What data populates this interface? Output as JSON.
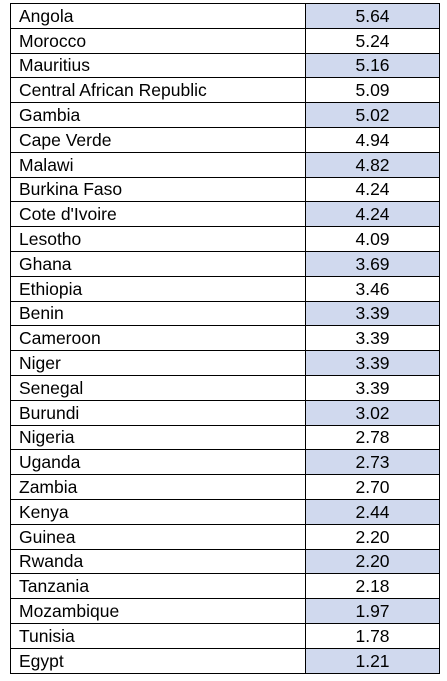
{
  "table": {
    "rows": [
      {
        "country": "Angola",
        "value": "5.64",
        "shaded": true
      },
      {
        "country": "Morocco",
        "value": "5.24",
        "shaded": false
      },
      {
        "country": "Mauritius",
        "value": "5.16",
        "shaded": true
      },
      {
        "country": "Central African Republic",
        "value": "5.09",
        "shaded": false
      },
      {
        "country": "Gambia",
        "value": "5.02",
        "shaded": true
      },
      {
        "country": "Cape Verde",
        "value": "4.94",
        "shaded": false
      },
      {
        "country": "Malawi",
        "value": "4.82",
        "shaded": true
      },
      {
        "country": "Burkina Faso",
        "value": "4.24",
        "shaded": false
      },
      {
        "country": "Cote d'Ivoire",
        "value": "4.24",
        "shaded": true
      },
      {
        "country": "Lesotho",
        "value": "4.09",
        "shaded": false
      },
      {
        "country": "Ghana",
        "value": "3.69",
        "shaded": true
      },
      {
        "country": "Ethiopia",
        "value": "3.46",
        "shaded": false
      },
      {
        "country": "Benin",
        "value": "3.39",
        "shaded": true
      },
      {
        "country": "Cameroon",
        "value": "3.39",
        "shaded": false
      },
      {
        "country": "Niger",
        "value": "3.39",
        "shaded": true
      },
      {
        "country": "Senegal",
        "value": "3.39",
        "shaded": false
      },
      {
        "country": "Burundi",
        "value": "3.02",
        "shaded": true
      },
      {
        "country": "Nigeria",
        "value": "2.78",
        "shaded": false
      },
      {
        "country": "Uganda",
        "value": "2.73",
        "shaded": true
      },
      {
        "country": "Zambia",
        "value": "2.70",
        "shaded": false
      },
      {
        "country": "Kenya",
        "value": "2.44",
        "shaded": true
      },
      {
        "country": "Guinea",
        "value": "2.20",
        "shaded": false
      },
      {
        "country": "Rwanda",
        "value": "2.20",
        "shaded": true
      },
      {
        "country": "Tanzania",
        "value": "2.18",
        "shaded": false
      },
      {
        "country": "Mozambique",
        "value": "1.97",
        "shaded": true
      },
      {
        "country": "Tunisia",
        "value": "1.78",
        "shaded": false
      },
      {
        "country": "Egypt",
        "value": "1.21",
        "shaded": true
      }
    ]
  },
  "colors": {
    "shade": "#d0d9ee",
    "border": "#000000",
    "text": "#000000"
  }
}
